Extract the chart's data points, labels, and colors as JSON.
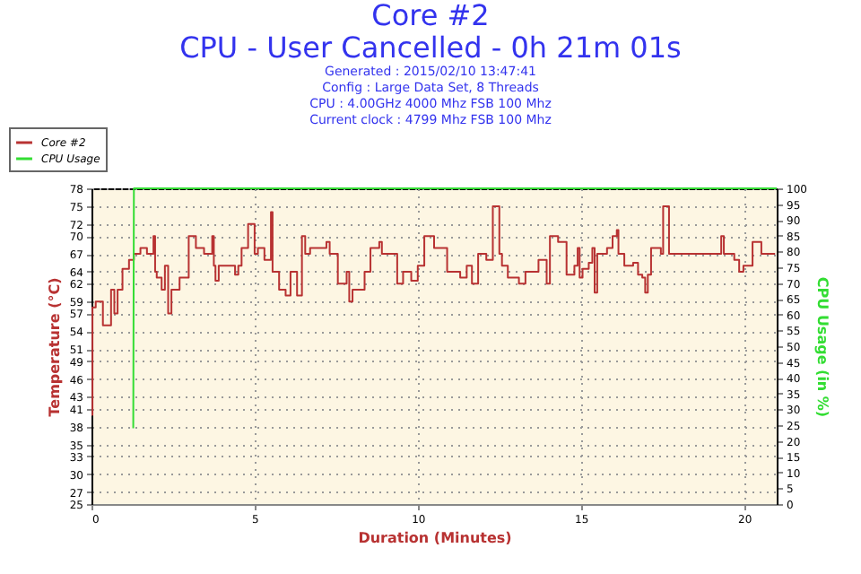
{
  "chart_data": {
    "type": "step",
    "title": "Core #2",
    "subtitle": "CPU - User Cancelled - 0h 21m 01s",
    "annotations": [
      "Generated : 2015/02/10 13:47:41",
      "Config : Large Data Set, 8 Threads",
      "CPU : 4.00GHz 4000 Mhz FSB 100 Mhz",
      "Current clock : 4799 Mhz FSB 100 Mhz"
    ],
    "xlabel": "Duration (Minutes)",
    "ylabel": "Temperature (°C)",
    "y2label": "CPU Usage (in %)",
    "x": [
      0,
      0.03,
      0.13,
      0.35,
      0.6,
      0.7,
      0.8,
      0.95,
      1.15,
      1.3,
      1.5,
      1.7,
      1.9,
      1.95,
      2.0,
      2.15,
      2.25,
      2.35,
      2.45,
      2.7,
      2.98,
      3.2,
      3.45,
      3.7,
      3.75,
      3.8,
      3.9,
      4.4,
      4.5,
      4.6,
      4.8,
      5.0,
      5.1,
      5.3,
      5.5,
      5.55,
      5.75,
      5.95,
      6.1,
      6.3,
      6.45,
      6.55,
      6.7,
      7.2,
      7.3,
      7.55,
      7.82,
      7.9,
      8.0,
      8.37,
      8.55,
      8.82,
      8.9,
      9.37,
      9.55,
      9.8,
      10.0,
      10.2,
      10.5,
      10.9,
      11.3,
      11.5,
      11.66,
      11.85,
      12.1,
      12.3,
      12.5,
      12.58,
      12.76,
      13.1,
      13.3,
      13.7,
      13.95,
      14.05,
      14.3,
      14.56,
      14.8,
      14.9,
      14.96,
      15.05,
      15.24,
      15.35,
      15.42,
      15.5,
      15.8,
      15.97,
      16.1,
      16.15,
      16.33,
      16.6,
      16.75,
      16.88,
      16.97,
      17.05,
      17.15,
      17.45,
      17.52,
      17.7,
      19.3,
      19.38,
      19.7,
      19.85,
      19.98,
      20.26,
      20.53,
      20.95
    ],
    "series": [
      {
        "name": "Core #2",
        "color": "#b83232",
        "values": [
          40,
          58,
          59,
          55,
          61,
          57,
          61,
          64.5,
          66,
          67,
          68,
          67,
          70,
          64,
          63,
          61,
          65,
          57,
          61,
          63,
          70,
          68,
          67,
          70,
          65,
          62.5,
          65,
          63.5,
          65,
          68,
          72,
          67,
          68,
          66,
          74,
          64,
          61,
          60,
          64,
          60,
          70,
          67,
          68,
          69,
          67,
          62,
          64,
          59,
          61,
          64,
          68,
          69,
          67,
          62,
          64,
          62.5,
          65,
          70,
          68,
          64,
          63,
          65,
          62,
          67,
          66,
          75,
          67,
          65,
          63,
          62,
          64,
          66,
          62,
          70,
          69,
          63.5,
          65,
          68,
          63,
          64.5,
          65.5,
          68,
          60.5,
          67,
          68,
          70,
          71,
          67,
          65,
          65.5,
          63.5,
          63,
          60.5,
          63.5,
          68,
          67,
          75,
          67,
          70,
          67,
          66,
          64,
          65,
          69,
          67,
          67
        ]
      },
      {
        "name": "CPU Usage",
        "color": "#33dd33",
        "type": "line",
        "axis": "y2",
        "x": [
          1.28,
          1.3,
          21
        ],
        "values": [
          24,
          100,
          100
        ]
      }
    ],
    "xlim": [
      0,
      21
    ],
    "xticks": [
      0,
      5,
      10,
      15,
      20
    ],
    "ylim": [
      25,
      78
    ],
    "yticks": [
      25,
      27,
      30,
      33,
      35,
      38,
      41,
      43,
      46,
      49,
      51,
      54,
      57,
      59,
      62,
      64,
      67,
      70,
      72,
      75,
      78
    ],
    "y2lim": [
      0,
      100
    ],
    "y2ticks": [
      0,
      5,
      10,
      15,
      20,
      25,
      30,
      35,
      40,
      45,
      50,
      55,
      60,
      65,
      70,
      75,
      80,
      85,
      90,
      95,
      100
    ],
    "grid": true,
    "legend": "top left"
  }
}
